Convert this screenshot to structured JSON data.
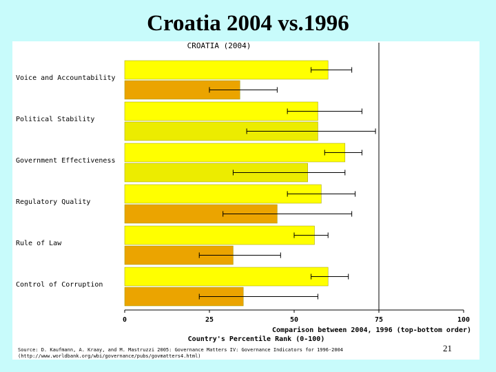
{
  "slide": {
    "title": "Croatia 2004 vs.1996",
    "page_number": "21"
  },
  "colors": {
    "background": "#c8fbfb",
    "bar_2004": "#ffff00",
    "bar_1996_low": "#eba400",
    "bar_1996_mid": "#ecec00"
  },
  "chart_data": {
    "type": "bar",
    "orientation": "horizontal",
    "title": "CROATIA (2004)",
    "xlabel": "Country's Percentile Rank (0-100)",
    "xlim": [
      0,
      100
    ],
    "x_ticks": [
      "0",
      "25",
      "50",
      "75",
      "100"
    ],
    "comparison_note": "Comparison between 2004, 1996 (top-bottom order)",
    "categories": [
      "Voice and Accountability",
      "Political Stability",
      "Government Effectiveness",
      "Regulatory Quality",
      "Rule of Law",
      "Control of Corruption"
    ],
    "series": [
      {
        "year": "2004",
        "values": [
          60,
          57,
          65,
          58,
          56,
          60
        ],
        "err_low": [
          55,
          48,
          59,
          48,
          50,
          55
        ],
        "err_high": [
          67,
          70,
          70,
          68,
          60,
          66
        ]
      },
      {
        "year": "1996",
        "values": [
          34,
          57,
          54,
          45,
          32,
          35
        ],
        "err_low": [
          25,
          36,
          32,
          29,
          22,
          22
        ],
        "err_high": [
          45,
          74,
          65,
          67,
          46,
          57
        ]
      }
    ],
    "bar_1996_colors": [
      "#eba400",
      "#ecec00",
      "#ecec00",
      "#eba400",
      "#eba400",
      "#eba400"
    ],
    "reference_line_x": 75,
    "grid": false,
    "source": "Source: D. Kaufmann, A. Kraay, and M. Mastruzzi 2005: Governance Matters IV: Governance Indicators for 1996-2004",
    "source_url": "(http://www.worldbank.org/wbi/governance/pubs/govmatters4.html)"
  }
}
